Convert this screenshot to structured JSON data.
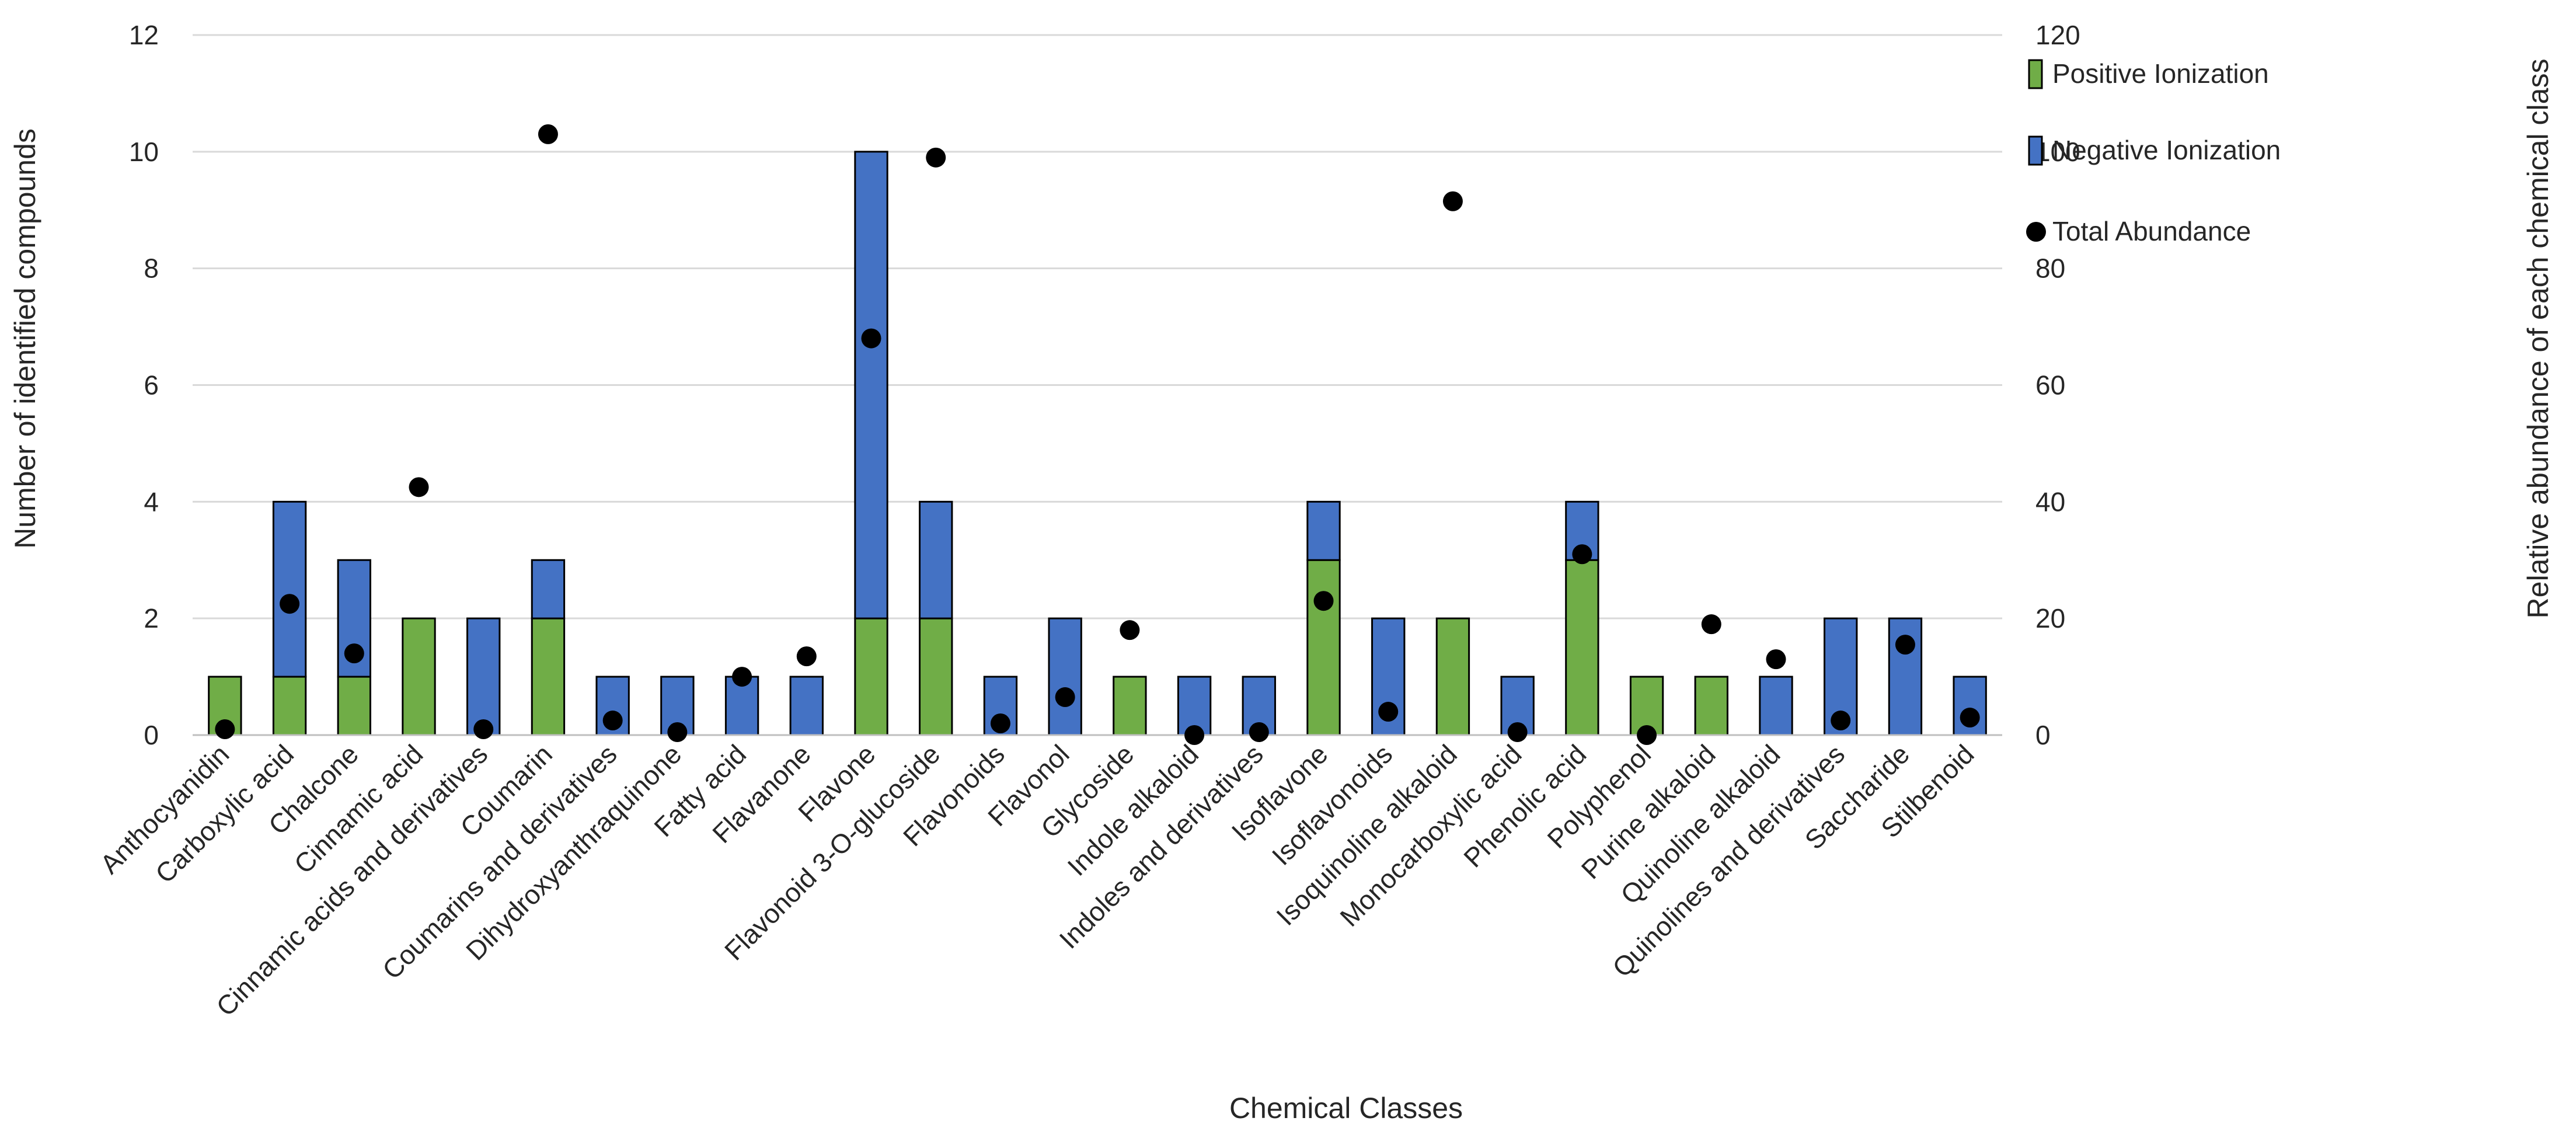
{
  "chart_data": {
    "type": "bar",
    "stacked": true,
    "title": "",
    "xlabel": "Chemical Classes",
    "ylabel_left": "Number of identified compounds",
    "ylabel_right": "Relative abundance of each chemical class",
    "ylim_left": [
      0,
      12
    ],
    "ylim_right": [
      0,
      120
    ],
    "yticks_left": [
      "0",
      "2",
      "4",
      "6",
      "8",
      "10",
      "12"
    ],
    "yticks_right": [
      "0",
      "20",
      "40",
      "60",
      "80",
      "100",
      "120"
    ],
    "grid": true,
    "legend_position": "top-right",
    "categories": [
      "Anthocyanidin",
      "Carboxylic acid",
      "Chalcone",
      "Cinnamic acid",
      "Cinnamic acids and derivatives",
      "Coumarin",
      "Coumarins and derivatives",
      "Dihydroxyanthraquinone",
      "Fatty acid",
      "Flavanone",
      "Flavone",
      "Flavonoid 3-O-glucoside",
      "Flavonoids",
      "Flavonol",
      "Glycoside",
      "Indole alkaloid",
      "Indoles and derivatives",
      "Isoflavone",
      "Isoflavonoids",
      "Isoquinoline alkaloid",
      "Monocarboxylic acid",
      "Phenolic acid",
      "Polyphenol",
      "Purine alkaloid",
      "Quinoline alkaloid",
      "Quinolines and derivatives",
      "Saccharide",
      "Stilbenoid"
    ],
    "series": [
      {
        "name": "Positive Ionization",
        "kind": "bar",
        "axis": "left",
        "color": "#70ad47",
        "values": [
          1,
          1,
          1,
          2,
          0,
          2,
          0,
          0,
          0,
          0,
          2,
          2,
          0,
          0,
          1,
          0,
          0,
          3,
          0,
          2,
          0,
          3,
          1,
          1,
          0,
          0,
          0,
          0
        ]
      },
      {
        "name": "Negative Ionization",
        "kind": "bar",
        "axis": "left",
        "color": "#4472c4",
        "values": [
          0,
          3,
          2,
          0,
          2,
          1,
          1,
          1,
          1,
          1,
          8,
          2,
          1,
          2,
          0,
          1,
          1,
          1,
          2,
          0,
          1,
          1,
          0,
          0,
          1,
          2,
          2,
          1
        ]
      },
      {
        "name": "Total Abundance",
        "kind": "scatter",
        "axis": "right",
        "color": "#000000",
        "values": [
          1,
          22.5,
          14,
          42.5,
          1,
          103,
          2.5,
          0.5,
          10,
          13.5,
          68,
          99,
          2,
          6.5,
          18,
          0,
          0.5,
          23,
          4,
          91.5,
          0.5,
          31,
          0,
          19,
          13,
          2.5,
          15.5,
          3
        ]
      }
    ]
  }
}
